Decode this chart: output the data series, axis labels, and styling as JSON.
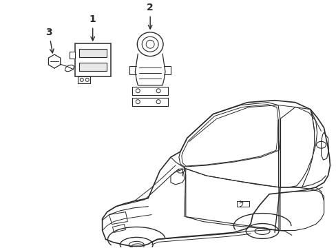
{
  "background_color": "#ffffff",
  "line_color": "#2a2a2a",
  "line_width": 1.0,
  "label_fontsize": 10,
  "figsize": [
    4.89,
    3.6
  ],
  "dpi": 100
}
